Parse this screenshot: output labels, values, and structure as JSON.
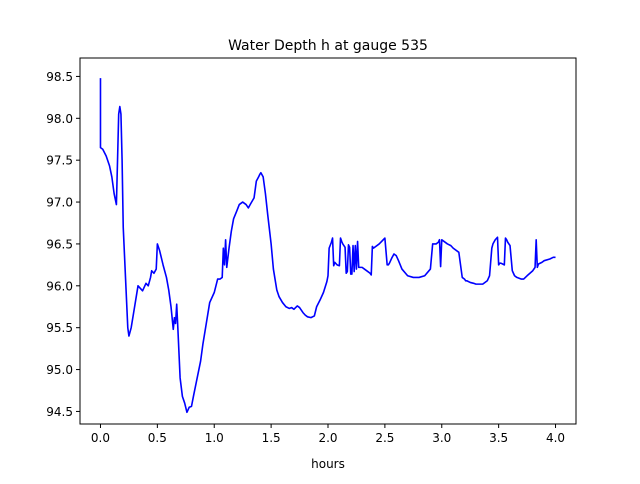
{
  "chart_data": {
    "type": "line",
    "title": "Water Depth h at gauge 535",
    "xlabel": "hours",
    "ylabel": "",
    "xlim": [
      -0.18,
      4.18
    ],
    "ylim": [
      94.35,
      98.72
    ],
    "xticks": [
      0.0,
      0.5,
      1.0,
      1.5,
      2.0,
      2.5,
      3.0,
      3.5,
      4.0
    ],
    "xtick_labels": [
      "0.0",
      "0.5",
      "1.0",
      "1.5",
      "2.0",
      "2.5",
      "3.0",
      "3.5",
      "4.0"
    ],
    "yticks": [
      94.5,
      95.0,
      95.5,
      96.0,
      96.5,
      97.0,
      97.5,
      98.0,
      98.5
    ],
    "ytick_labels": [
      "94.5",
      "95.0",
      "95.5",
      "96.0",
      "96.5",
      "97.0",
      "97.5",
      "98.0",
      "98.5"
    ],
    "grid": false,
    "legend": "none",
    "series_color": "#0000ff",
    "series": [
      {
        "x": [
          0.0,
          0.0,
          0.02,
          0.05,
          0.08,
          0.1,
          0.12,
          0.14,
          0.15,
          0.16,
          0.17,
          0.18,
          0.19,
          0.2,
          0.22,
          0.24,
          0.25,
          0.27,
          0.3,
          0.33,
          0.35,
          0.37,
          0.4,
          0.42,
          0.44,
          0.45,
          0.47,
          0.49,
          0.5,
          0.52,
          0.55,
          0.58,
          0.6,
          0.62,
          0.64,
          0.65,
          0.66,
          0.67,
          0.68,
          0.7,
          0.72,
          0.74,
          0.76,
          0.78,
          0.8,
          0.82,
          0.85,
          0.88,
          0.9,
          0.93,
          0.96,
          1.0,
          1.03,
          1.05,
          1.07,
          1.08,
          1.09,
          1.1,
          1.11,
          1.13,
          1.15,
          1.17,
          1.2,
          1.22,
          1.25,
          1.28,
          1.3,
          1.32,
          1.35,
          1.37,
          1.39,
          1.4,
          1.41,
          1.43,
          1.45,
          1.47,
          1.5,
          1.52,
          1.55,
          1.57,
          1.6,
          1.63,
          1.66,
          1.68,
          1.7,
          1.73,
          1.75,
          1.78,
          1.8,
          1.82,
          1.85,
          1.88,
          1.9,
          1.93,
          1.96,
          1.99,
          2.0,
          2.01,
          2.03,
          2.04,
          2.05,
          2.06,
          2.08,
          2.1,
          2.11,
          2.12,
          2.13,
          2.15,
          2.16,
          2.17,
          2.18,
          2.19,
          2.2,
          2.21,
          2.22,
          2.23,
          2.24,
          2.25,
          2.26,
          2.27,
          2.28,
          2.3,
          2.32,
          2.35,
          2.37,
          2.38,
          2.39,
          2.4,
          2.45,
          2.5,
          2.52,
          2.53,
          2.54,
          2.55,
          2.56,
          2.58,
          2.6,
          2.62,
          2.65,
          2.7,
          2.75,
          2.8,
          2.85,
          2.9,
          2.92,
          2.95,
          2.97,
          2.98,
          2.99,
          3.0,
          3.02,
          3.05,
          3.08,
          3.1,
          3.15,
          3.18,
          3.2,
          3.21,
          3.22,
          3.25,
          3.28,
          3.3,
          3.33,
          3.36,
          3.4,
          3.42,
          3.44,
          3.45,
          3.47,
          3.49,
          3.5,
          3.51,
          3.52,
          3.55,
          3.56,
          3.57,
          3.58,
          3.6,
          3.62,
          3.63,
          3.64,
          3.66,
          3.7,
          3.72,
          3.75,
          3.8,
          3.82,
          3.83,
          3.84,
          3.85,
          3.88,
          3.9,
          3.95,
          3.98,
          4.0
        ],
        "y": [
          98.48,
          97.65,
          97.63,
          97.55,
          97.43,
          97.3,
          97.1,
          96.97,
          97.5,
          98.05,
          98.14,
          98.05,
          97.5,
          96.7,
          96.1,
          95.5,
          95.4,
          95.5,
          95.75,
          96.0,
          95.97,
          95.94,
          96.03,
          96.0,
          96.1,
          96.18,
          96.15,
          96.2,
          96.5,
          96.42,
          96.25,
          96.1,
          95.95,
          95.75,
          95.48,
          95.62,
          95.55,
          95.78,
          95.5,
          94.9,
          94.68,
          94.6,
          94.49,
          94.55,
          94.56,
          94.7,
          94.9,
          95.1,
          95.3,
          95.55,
          95.8,
          95.92,
          96.08,
          96.08,
          96.1,
          96.45,
          96.25,
          96.55,
          96.22,
          96.45,
          96.65,
          96.8,
          96.9,
          96.97,
          97.0,
          96.97,
          96.93,
          96.98,
          97.05,
          97.25,
          97.3,
          97.33,
          97.35,
          97.3,
          97.1,
          96.85,
          96.5,
          96.2,
          95.95,
          95.87,
          95.8,
          95.75,
          95.73,
          95.74,
          95.72,
          95.76,
          95.74,
          95.68,
          95.65,
          95.63,
          95.62,
          95.64,
          95.75,
          95.83,
          95.92,
          96.05,
          96.12,
          96.45,
          96.52,
          96.57,
          96.24,
          96.28,
          96.25,
          96.24,
          96.57,
          96.53,
          96.5,
          96.46,
          96.15,
          96.17,
          96.49,
          96.46,
          96.14,
          96.14,
          96.48,
          96.17,
          96.48,
          96.2,
          96.53,
          96.22,
          96.22,
          96.22,
          96.2,
          96.17,
          96.15,
          96.13,
          96.47,
          96.45,
          96.5,
          96.57,
          96.25,
          96.25,
          96.27,
          96.3,
          96.33,
          96.38,
          96.36,
          96.3,
          96.2,
          96.12,
          96.1,
          96.1,
          96.12,
          96.2,
          96.5,
          96.5,
          96.52,
          96.55,
          96.23,
          96.55,
          96.53,
          96.5,
          96.48,
          96.45,
          96.4,
          96.1,
          96.08,
          96.06,
          96.06,
          96.04,
          96.03,
          96.02,
          96.02,
          96.02,
          96.06,
          96.12,
          96.45,
          96.5,
          96.55,
          96.58,
          96.25,
          96.27,
          96.27,
          96.25,
          96.57,
          96.55,
          96.52,
          96.48,
          96.18,
          96.15,
          96.12,
          96.1,
          96.08,
          96.08,
          96.12,
          96.18,
          96.22,
          96.55,
          96.22,
          96.26,
          96.28,
          96.3,
          96.32,
          96.34,
          96.34
        ]
      }
    ]
  }
}
